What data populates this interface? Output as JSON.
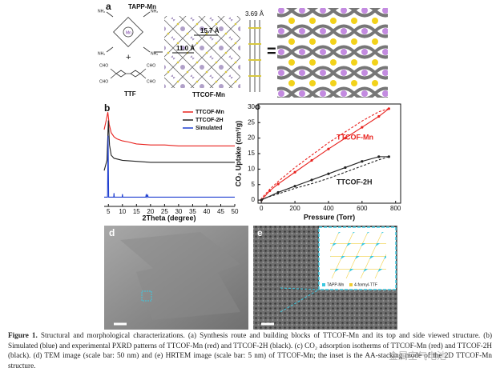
{
  "panel_a": {
    "label": "a",
    "tapp": "TAPP-Mn",
    "amine": "NH₂",
    "metal": "Mn",
    "plus": "+",
    "ttf": "TTF",
    "aldehyde": "CHO",
    "product": "TTCOF-Mn",
    "pore_large": "15.7 Å",
    "pore_small": "11.0 Å",
    "stacking": "3.69 Å",
    "equals": "="
  },
  "chart_data": [
    {
      "type": "line",
      "panel_label": "b",
      "x_label": "2Theta (degree)",
      "xlim": [
        3.5,
        50
      ],
      "xticks": [
        5,
        10,
        15,
        20,
        25,
        30,
        35,
        40,
        45,
        50
      ],
      "ylim": [
        0,
        100
      ],
      "legend": "upper right",
      "series": [
        {
          "name": "TTCOF-Mn",
          "color": "#e8221e",
          "x": [
            3.5,
            4.3,
            4.8,
            5.3,
            6,
            7,
            8,
            10,
            12,
            15,
            20,
            25,
            30,
            35,
            40,
            45,
            50
          ],
          "values": [
            75,
            85,
            92,
            80,
            72,
            68,
            66,
            64,
            63,
            61,
            60,
            60,
            59,
            59,
            59,
            59,
            59
          ]
        },
        {
          "name": "TTCOF-2H",
          "color": "#222222",
          "x": [
            3.5,
            4.5,
            5,
            5.4,
            6,
            7,
            10,
            15,
            20,
            30,
            40,
            50
          ],
          "values": [
            35,
            45,
            84,
            60,
            50,
            47,
            45,
            44,
            43,
            43,
            43,
            43
          ]
        },
        {
          "name": "Simulated",
          "color": "#1f3fd0",
          "x": [
            3.5,
            4.7,
            4.9,
            5.1,
            6.9,
            7,
            7.1,
            9.9,
            10,
            10.1,
            18.3,
            18.5,
            18.7,
            19,
            19.2,
            50
          ],
          "values": [
            9,
            9,
            69,
            9,
            9,
            13,
            9,
            9,
            12,
            9,
            9,
            12,
            9,
            11,
            9,
            9
          ]
        }
      ]
    },
    {
      "type": "line",
      "panel_label": "c",
      "x_label": "Pressure (Torr)",
      "y_label": "CO₂ Uptake (cm³/g)",
      "xlim": [
        -20,
        830
      ],
      "xticks": [
        0,
        200,
        400,
        600,
        800
      ],
      "ylim": [
        -1,
        31
      ],
      "yticks": [
        0,
        5,
        10,
        15,
        20,
        25,
        30
      ],
      "series": [
        {
          "name": "TTCOF-Mn",
          "color": "#e8221e",
          "markers": true,
          "x": [
            0,
            50,
            100,
            200,
            300,
            400,
            500,
            600,
            700,
            760
          ],
          "values": [
            0,
            3,
            5.2,
            9,
            12.8,
            16.5,
            20,
            23.5,
            27,
            29.5
          ],
          "desorption_x": [
            760,
            700,
            600,
            500,
            400,
            300,
            200,
            100,
            50,
            0
          ],
          "desorption_values": [
            29.5,
            28.5,
            25.5,
            22,
            18.5,
            14.5,
            10.5,
            6,
            3.5,
            0.5
          ]
        },
        {
          "name": "TTCOF-2H",
          "color": "#222222",
          "markers": true,
          "x": [
            0,
            100,
            200,
            300,
            400,
            500,
            600,
            700,
            760
          ],
          "values": [
            0,
            2.5,
            4.5,
            6.5,
            8.5,
            10.5,
            12.5,
            14,
            14
          ],
          "desorption_x": [
            760,
            700,
            600,
            500,
            400,
            300,
            200,
            100,
            0
          ],
          "desorption_values": [
            14,
            13,
            11,
            9,
            7,
            5.3,
            3.8,
            2,
            0.3
          ]
        }
      ]
    }
  ],
  "panel_d": {
    "label": "d"
  },
  "panel_e": {
    "label": "e",
    "legend_node": "TAPP-Mn",
    "legend_linker": "4-formyl-TTF"
  },
  "caption": {
    "label": "Figure 1.",
    "text": "Structural and morphological characterizations. (a) Synthesis route and building blocks of TTCOF-Mn and its top and side viewed structure. (b) Simulated (blue) and experimental PXRD patterns of TTCOF-Mn (red) and TTCOF-2H (black). (c) CO₂ adsorption isotherms of TTCOF-Mn (red) and TTCOF-2H (black). (d) TEM image (scale bar: 50 nm) and (e) HRTEM image (scale bar: 5 nm) of TTCOF-Mn; the inset is the AA-stacking mode of the 2D TTCOF-Mn structure.",
    "watermark": "金属空气电池"
  }
}
